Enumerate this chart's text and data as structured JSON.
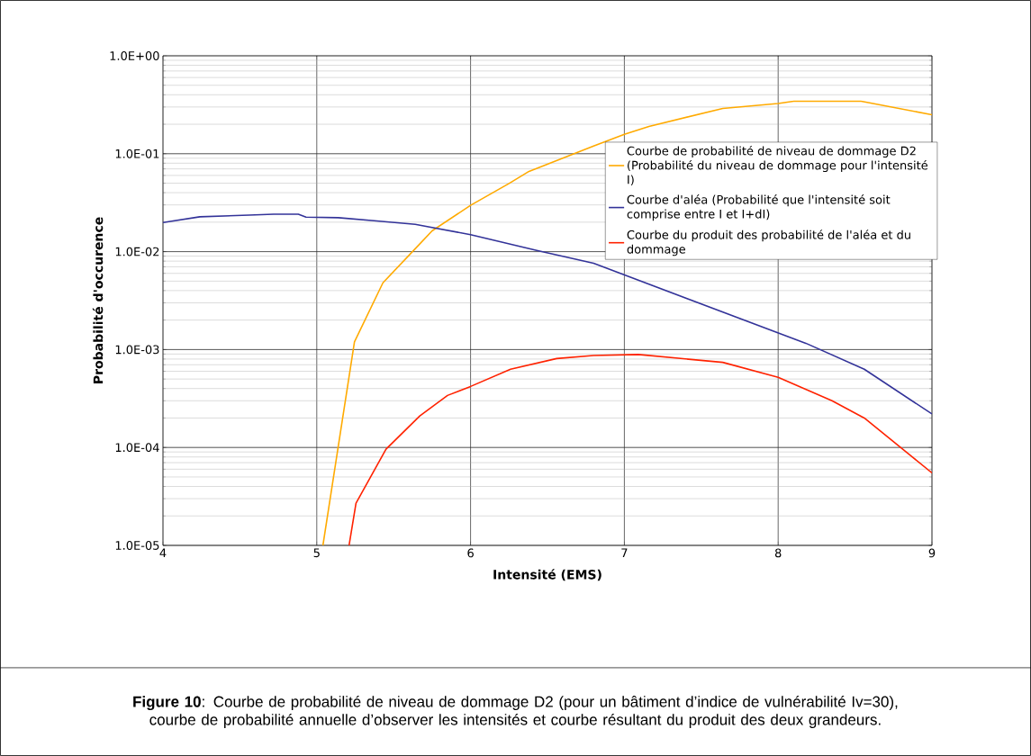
{
  "chart_data": {
    "type": "line",
    "xlabel": "Intensité (EMS)",
    "ylabel": "Probabilité d'occurence",
    "xlim": [
      4,
      9
    ],
    "ylim": [
      1e-05,
      1
    ],
    "xticks": [
      4,
      5,
      6,
      7,
      8,
      9
    ],
    "yticks": [
      {
        "value": 1e-05,
        "label": "1.0E-05"
      },
      {
        "value": 0.0001,
        "label": "1.0E-04"
      },
      {
        "value": 0.001,
        "label": "1.0E-03"
      },
      {
        "value": 0.01,
        "label": "1.0E-02"
      },
      {
        "value": 0.1,
        "label": "1.0E-01"
      },
      {
        "value": 1,
        "label": "1.0E+00"
      }
    ],
    "log": "y",
    "grid": true,
    "legend": "top right",
    "series": [
      {
        "name": "Courbe de probabilité de niveau de dommage D2 (Probabilité du niveau de dommage pour l'intensité I)",
        "color": "#ffaa00",
        "x": [
          5.04,
          5.245,
          5.43,
          5.64,
          5.75,
          6.0,
          6.25,
          6.38,
          6.8,
          7.0,
          7.16,
          7.64,
          8.0,
          8.1,
          8.54,
          9.0
        ],
        "values": [
          1e-05,
          0.0012,
          0.0048,
          0.0107,
          0.0163,
          0.0297,
          0.0496,
          0.066,
          0.12,
          0.158,
          0.19,
          0.29,
          0.326,
          0.344,
          0.344,
          0.25
        ]
      },
      {
        "name": "Courbe d'aléa (Probabilité que l'intensité soit comprise entre I et I+dI)",
        "color": "#333399",
        "x": [
          4.0,
          4.24,
          4.56,
          4.72,
          4.88,
          4.93,
          5.14,
          5.39,
          5.64,
          6.0,
          6.43,
          6.8,
          8.18,
          8.56,
          9.0
        ],
        "values": [
          0.0198,
          0.0227,
          0.0236,
          0.0241,
          0.0241,
          0.0225,
          0.0222,
          0.0206,
          0.019,
          0.0149,
          0.0103,
          0.0076,
          0.00116,
          0.00063,
          0.00022
        ]
      },
      {
        "name": "Courbe du produit des probabilité de l'aléa et du dommage",
        "color": "#ff2200",
        "x": [
          5.21,
          5.255,
          5.45,
          5.67,
          5.85,
          6.0,
          6.26,
          6.56,
          6.8,
          7.09,
          7.64,
          8.0,
          8.35,
          8.56,
          9.0
        ],
        "values": [
          1e-05,
          2.7e-05,
          9.6e-05,
          0.00021,
          0.00034,
          0.00042,
          0.00063,
          0.00081,
          0.00087,
          0.00089,
          0.00074,
          0.00052,
          0.0003,
          0.0002,
          5.5e-05
        ]
      }
    ],
    "annotations": [
      "**Figure 10**: Courbe de probabilité de niveau de dommage D2 (pour un bâtiment d’indice de vulnérabilité Iv=30), courbe de probabilité annuelle d’observer les intensités et courbe résultant du produit des deux grandeurs."
    ]
  }
}
